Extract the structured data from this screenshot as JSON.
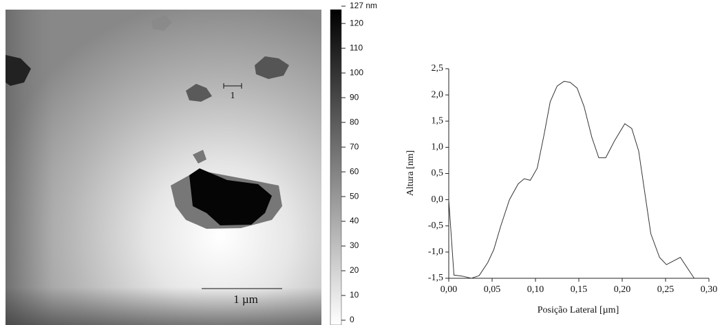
{
  "chart_data": [
    {
      "type": "line",
      "x": [
        0,
        0.006,
        0.016,
        0.026,
        0.035,
        0.045,
        0.052,
        0.06,
        0.07,
        0.08,
        0.087,
        0.094,
        0.102,
        0.11,
        0.117,
        0.125,
        0.133,
        0.14,
        0.148,
        0.156,
        0.165,
        0.173,
        0.181,
        0.191,
        0.203,
        0.211,
        0.219,
        0.233,
        0.243,
        0.251,
        0.267,
        0.283
      ],
      "values": [
        0.0,
        -1.44,
        -1.46,
        -1.5,
        -1.45,
        -1.2,
        -0.95,
        -0.5,
        0.0,
        0.3,
        0.4,
        0.37,
        0.6,
        1.25,
        1.87,
        2.17,
        2.26,
        2.24,
        2.13,
        1.78,
        1.19,
        0.8,
        0.8,
        1.12,
        1.45,
        1.36,
        0.93,
        -0.65,
        -1.1,
        -1.24,
        -1.1,
        -1.5
      ],
      "color": "#333333",
      "xlabel": "Posição Lateral [µm]",
      "ylabel": "Altura [nm]",
      "xlim": [
        0,
        0.3
      ],
      "ylim": [
        -1.5,
        2.5
      ],
      "xticks": [
        {
          "value": 0,
          "label": "0,00"
        },
        {
          "value": 0.05,
          "label": "0,05"
        },
        {
          "value": 0.1,
          "label": "0,10"
        },
        {
          "value": 0.15,
          "label": "0,15"
        },
        {
          "value": 0.2,
          "label": "0,20"
        },
        {
          "value": 0.25,
          "label": "0,25"
        },
        {
          "value": 0.3,
          "label": "0,30"
        }
      ],
      "yticks": [
        {
          "value": -1.5,
          "label": "-1,5"
        },
        {
          "value": -1,
          "label": "-1,0"
        },
        {
          "value": -0.5,
          "label": "-0,5"
        },
        {
          "value": 0,
          "label": "0,0"
        },
        {
          "value": 0.5,
          "label": "0,5"
        },
        {
          "value": 1,
          "label": "1,0"
        },
        {
          "value": 1.5,
          "label": "1,5"
        },
        {
          "value": 2,
          "label": "2,0"
        },
        {
          "value": 2.5,
          "label": "2,5"
        }
      ]
    },
    {
      "type": "image",
      "annotations": [
        "1",
        "1 µm"
      ],
      "ylim": [
        0,
        127
      ],
      "yticks": [
        {
          "value": 127,
          "label": "127 nm"
        },
        120,
        110,
        100,
        90,
        80,
        70,
        60,
        50,
        40,
        30,
        20,
        10,
        0
      ]
    }
  ]
}
